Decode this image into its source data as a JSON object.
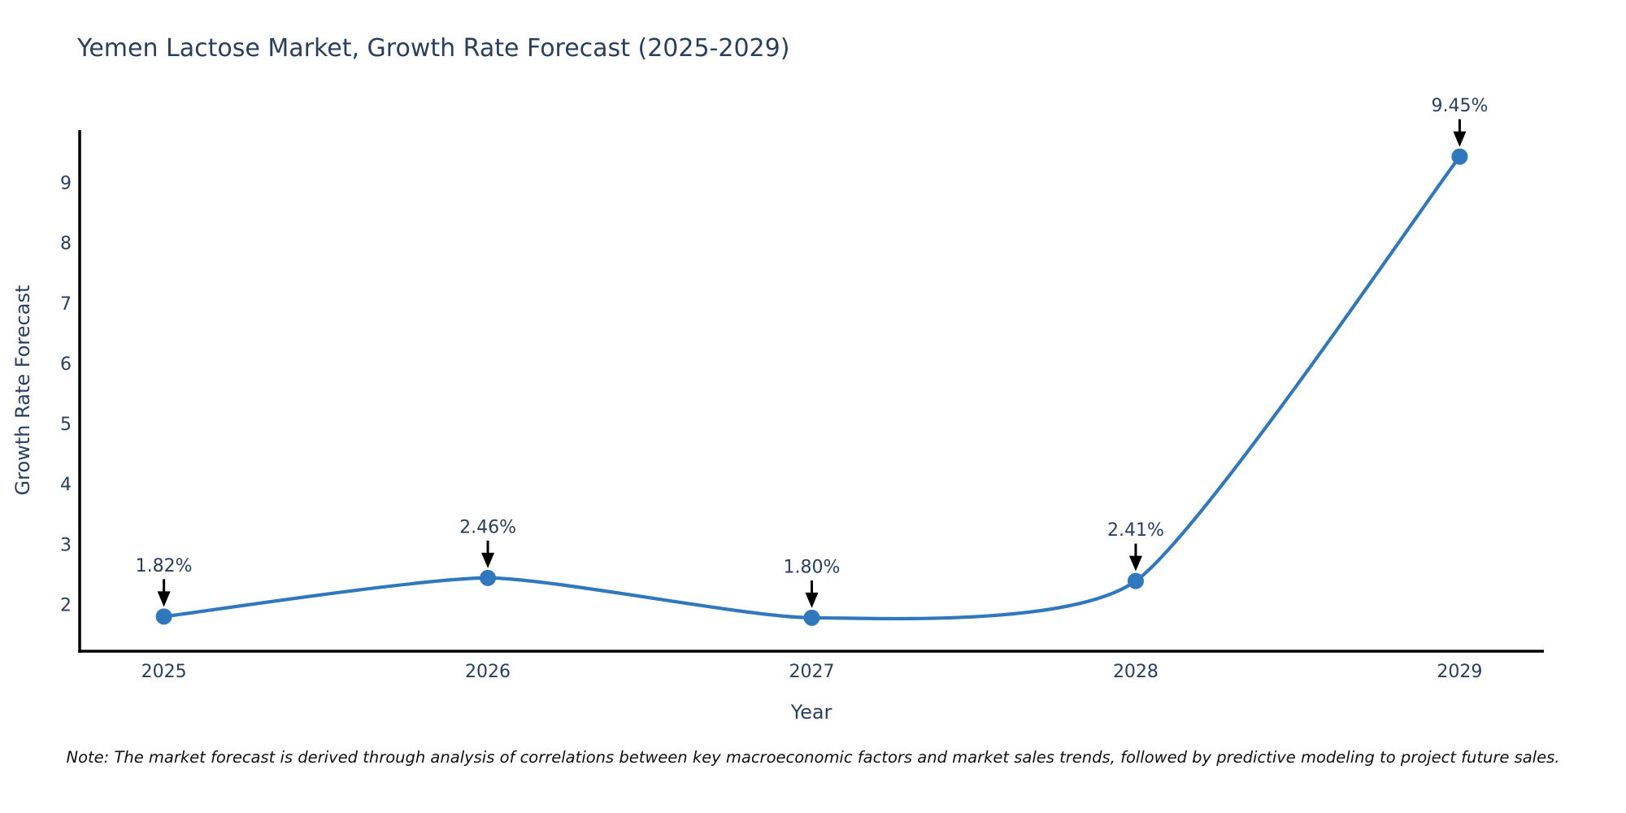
{
  "title": "Yemen Lactose Market, Growth Rate Forecast (2025-2029)",
  "note": "Note: The market forecast is derived through analysis of correlations between key macroeconomic factors and market sales trends, followed by predictive modeling to project future sales.",
  "chart_data": {
    "type": "line",
    "title": "Yemen Lactose Market, Growth Rate Forecast (2025-2029)",
    "xlabel": "Year",
    "ylabel": "Growth Rate Forecast",
    "x": [
      2025,
      2026,
      2027,
      2028,
      2029
    ],
    "values": [
      1.82,
      2.46,
      1.8,
      2.41,
      9.45
    ],
    "point_labels": [
      "1.82%",
      "2.46%",
      "1.80%",
      "2.41%",
      "9.45%"
    ],
    "xticks": [
      2025,
      2026,
      2027,
      2028,
      2029
    ],
    "xtick_labels": [
      "2025",
      "2026",
      "2027",
      "2028",
      "2029"
    ],
    "yticks": [
      2,
      3,
      4,
      5,
      6,
      7,
      8,
      9
    ],
    "ytick_labels": [
      "2",
      "3",
      "4",
      "5",
      "6",
      "7",
      "8",
      "9"
    ],
    "xlim": [
      2024.74,
      2029.26
    ],
    "ylim": [
      1.245,
      9.89
    ],
    "grid": false,
    "legend_position": "none",
    "line_color": "#3078bd",
    "marker_color": "#3078bd",
    "axis_color": "#000000",
    "tick_color": "#2a3f5f",
    "annotation_text_color": "#2a3f5f",
    "annotation_arrow_color": "#000000",
    "background_color": "#ffffff"
  }
}
